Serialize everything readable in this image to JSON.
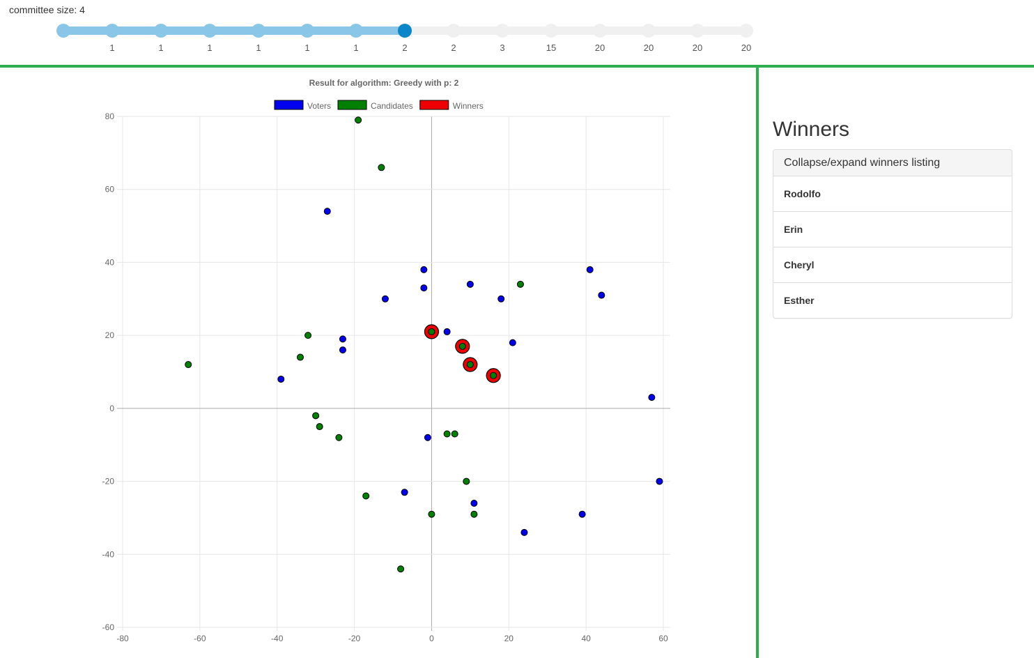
{
  "committee": {
    "label": "committee size: 4",
    "selected_index": 7,
    "tick_labels": [
      "",
      "1",
      "1",
      "1",
      "1",
      "1",
      "1",
      "2",
      "2",
      "3",
      "15",
      "20",
      "20",
      "20",
      "20"
    ],
    "colors": {
      "active_track": "#8ac6e8",
      "active_dot": "#8ac6e8",
      "selected_dot": "#0b87c9",
      "inactive_track": "#f0f0f0",
      "inactive_dot": "#f0f0f0"
    }
  },
  "winners_panel": {
    "title": "Winners",
    "toggle_label": "Collapse/expand winners listing",
    "winners": [
      "Rodolfo",
      "Erin",
      "Cheryl",
      "Esther"
    ]
  },
  "chart_data": {
    "type": "scatter",
    "title": "Result for algorithm: Greedy with p: 2",
    "xlim": [
      -80,
      60
    ],
    "ylim": [
      -60,
      80
    ],
    "x_ticks": [
      -80,
      -60,
      -40,
      -20,
      0,
      20,
      40,
      60
    ],
    "y_ticks": [
      -60,
      -40,
      -20,
      0,
      20,
      40,
      60,
      80
    ],
    "grid": true,
    "legend_placement": "top",
    "series": [
      {
        "name": "Voters",
        "color": "#0000ee",
        "points": [
          [
            -27,
            54
          ],
          [
            -2,
            38
          ],
          [
            -2,
            33
          ],
          [
            -12,
            30
          ],
          [
            10,
            34
          ],
          [
            18,
            30
          ],
          [
            41,
            38
          ],
          [
            44,
            31
          ],
          [
            4,
            21
          ],
          [
            21,
            18
          ],
          [
            -23,
            19
          ],
          [
            -23,
            16
          ],
          [
            -39,
            8
          ],
          [
            57,
            3
          ],
          [
            -1,
            -8
          ],
          [
            59,
            -20
          ],
          [
            -7,
            -23
          ],
          [
            11,
            -26
          ],
          [
            39,
            -29
          ],
          [
            24,
            -34
          ]
        ]
      },
      {
        "name": "Candidates",
        "color": "#008000",
        "points": [
          [
            -19,
            79
          ],
          [
            -13,
            66
          ],
          [
            23,
            34
          ],
          [
            -32,
            20
          ],
          [
            -34,
            14
          ],
          [
            -63,
            12
          ],
          [
            0,
            21
          ],
          [
            8,
            17
          ],
          [
            10,
            12
          ],
          [
            16,
            9
          ],
          [
            -30,
            -2
          ],
          [
            -29,
            -5
          ],
          [
            -24,
            -8
          ],
          [
            4,
            -7
          ],
          [
            6,
            -7
          ],
          [
            9,
            -20
          ],
          [
            -17,
            -24
          ],
          [
            0,
            -29
          ],
          [
            11,
            -29
          ],
          [
            -8,
            -44
          ]
        ]
      },
      {
        "name": "Winners",
        "color": "#ee0000",
        "points": [
          [
            0,
            21
          ],
          [
            8,
            17
          ],
          [
            10,
            12
          ],
          [
            16,
            9
          ]
        ]
      }
    ]
  }
}
